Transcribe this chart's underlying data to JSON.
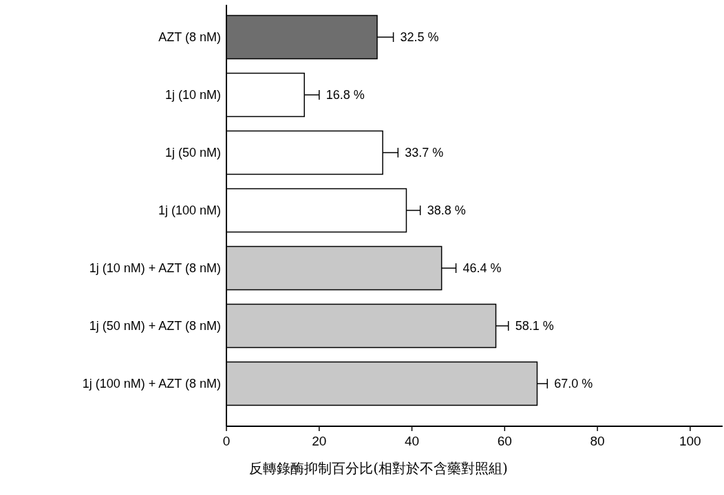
{
  "chart_data": {
    "type": "bar",
    "orientation": "horizontal",
    "categories": [
      "AZT (8 nM)",
      "1j (10 nM)",
      "1j (50 nM)",
      "1j (100 nM)",
      "1j (10 nM) + AZT (8 nM)",
      "1j (50 nM) + AZT (8 nM)",
      "1j (100 nM) + AZT (8 nM)"
    ],
    "values": [
      32.5,
      16.8,
      33.7,
      38.8,
      46.4,
      58.1,
      67.0
    ],
    "errors": [
      3.5,
      3.2,
      3.3,
      3.0,
      3.1,
      2.7,
      2.2
    ],
    "value_labels": [
      "32.5 %",
      "16.8 %",
      "33.7 %",
      "38.8 %",
      "46.4 %",
      "58.1 %",
      "67.0 %"
    ],
    "colors": [
      "#6e6e6e",
      "#ffffff",
      "#ffffff",
      "#ffffff",
      "#c8c8c8",
      "#c8c8c8",
      "#c8c8c8"
    ],
    "xlim": [
      0,
      107
    ],
    "xticks": [
      0,
      20,
      40,
      60,
      80,
      100
    ],
    "xlabel": "反轉錄酶抑制百分比(相對於不含藥對照組)"
  }
}
